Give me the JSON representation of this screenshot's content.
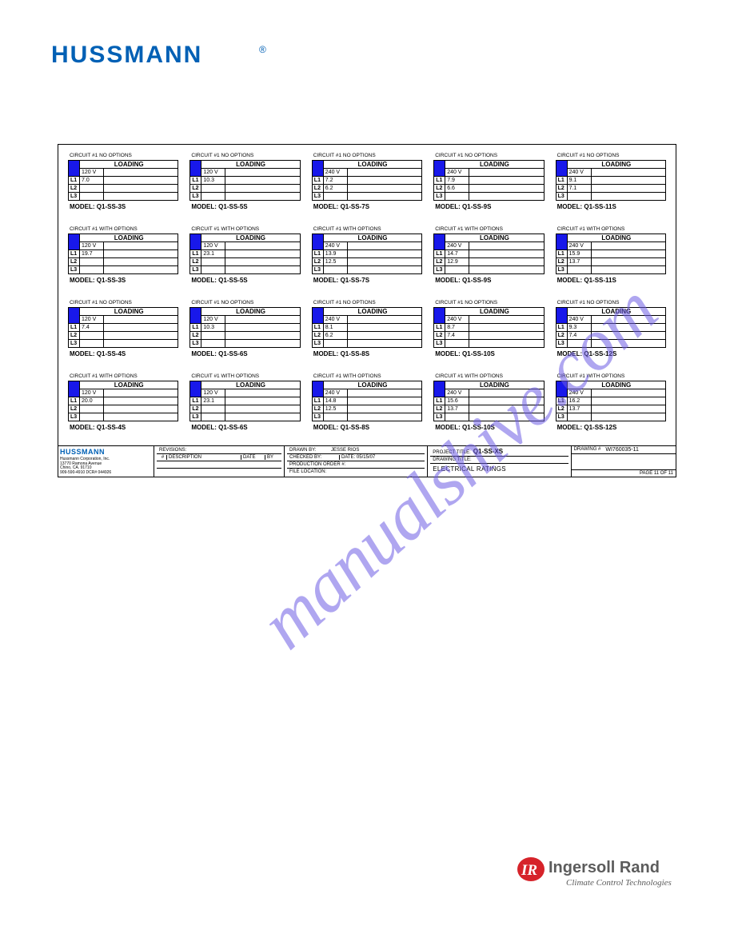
{
  "logo_text": "HUSSMANN",
  "registered": "®",
  "watermark": "manualshive.com",
  "loading_label": "LOADING",
  "L": [
    "L1",
    "L2",
    "L3"
  ],
  "rows": [
    [
      {
        "title": "CIRCUIT #1 NO OPTIONS",
        "volt": "120 V",
        "l1": "7.0",
        "l2": "",
        "model": "MODEL: Q1-SS-3S"
      },
      {
        "title": "CIRCUIT #1 NO OPTIONS",
        "volt": "120 V",
        "l1": "10.3",
        "l2": "",
        "model": "MODEL: Q1-SS-5S"
      },
      {
        "title": "CIRCUIT #1 NO OPTIONS",
        "volt": "240 V",
        "l1": "7.2",
        "l2": "6.2",
        "model": "MODEL: Q1-SS-7S"
      },
      {
        "title": "CIRCUIT #1 NO OPTIONS",
        "volt": "240 V",
        "l1": "7.9",
        "l2": "6.6",
        "model": "MODEL: Q1-SS-9S"
      },
      {
        "title": "CIRCUIT #1 NO OPTIONS",
        "volt": "240 V",
        "l1": "9.1",
        "l2": "7.1",
        "model": "MODEL: Q1-SS-11S"
      }
    ],
    [
      {
        "title": "CIRCUIT #1 WITH OPTIONS",
        "volt": "120 V",
        "l1": "19.7",
        "l2": "",
        "model": "MODEL: Q1-SS-3S"
      },
      {
        "title": "CIRCUIT #1 WITH OPTIONS",
        "volt": "120 V",
        "l1": "23.1",
        "l2": "",
        "model": "MODEL: Q1-SS-5S"
      },
      {
        "title": "CIRCUIT #1 WITH OPTIONS",
        "volt": "240 V",
        "l1": "13.9",
        "l2": "12.5",
        "model": "MODEL: Q1-SS-7S"
      },
      {
        "title": "CIRCUIT #1 WITH OPTIONS",
        "volt": "240 V",
        "l1": "14.7",
        "l2": "12.9",
        "model": "MODEL: Q1-SS-9S"
      },
      {
        "title": "CIRCUIT #1 WITH OPTIONS",
        "volt": "240 V",
        "l1": "15.9",
        "l2": "13.7",
        "model": "MODEL: Q1-SS-11S"
      }
    ],
    [
      {
        "title": "CIRCUIT #1 NO OPTIONS",
        "volt": "120 V",
        "l1": "7.4",
        "l2": "",
        "model": "MODEL: Q1-SS-4S"
      },
      {
        "title": "CIRCUIT #1 NO OPTIONS",
        "volt": "120 V",
        "l1": "10.3",
        "l2": "",
        "model": "MODEL: Q1-SS-6S"
      },
      {
        "title": "CIRCUIT #1 NO OPTIONS",
        "volt": "240 V",
        "l1": "8.1",
        "l2": "6.2",
        "model": "MODEL: Q1-SS-8S"
      },
      {
        "title": "CIRCUIT #1 NO OPTIONS",
        "volt": "240 V",
        "l1": "8.7",
        "l2": "7.4",
        "model": "MODEL: Q1-SS-10S"
      },
      {
        "title": "CIRCUIT #1 NO OPTIONS",
        "volt": "240 V",
        "l1": "9.3",
        "l2": "7.4",
        "model": "MODEL: Q1-SS-12S"
      }
    ],
    [
      {
        "title": "CIRCUIT #1 WITH OPTIONS",
        "volt": "120 V",
        "l1": "20.0",
        "l2": "",
        "model": "MODEL: Q1-SS-4S"
      },
      {
        "title": "CIRCUIT #1 WITH OPTIONS",
        "volt": "120 V",
        "l1": "23.1",
        "l2": "",
        "model": "MODEL: Q1-SS-6S"
      },
      {
        "title": "CIRCUIT #1 WITH OPTIONS",
        "volt": "240 V",
        "l1": "14.8",
        "l2": "12.5",
        "model": "MODEL: Q1-SS-8S"
      },
      {
        "title": "CIRCUIT #1 WITH OPTIONS",
        "volt": "240 V",
        "l1": "15.6",
        "l2": "13.7",
        "model": "MODEL: Q1-SS-10S"
      },
      {
        "title": "CIRCUIT #1 WITH OPTIONS",
        "volt": "240 V",
        "l1": "16.2",
        "l2": "13.7",
        "model": "MODEL: Q1-SS-12S"
      }
    ]
  ],
  "title_block": {
    "addr1": "Hussmann Corporation, Inc.",
    "addr2": "13770 Ramona Avenue",
    "addr3": "Chino, CA. 91710",
    "addr4": "909-590-4910   DCR# 044926",
    "revisions": "REVISIONS:",
    "hash": "#",
    "description": "DESCRIPTION",
    "date": "DATE",
    "by": "BY",
    "drawn_by": "DRAWN BY:",
    "drawn_by_val": "JESSE RIOS",
    "checked_by": "CHECKED BY:",
    "checked_date": "DATE: 05/15/07",
    "prod_order": "PRODUCTION ORDER #:",
    "file_loc": "FILE LOCATION:",
    "project_title_lbl": "PROJECT TITLE:",
    "project_title": "Q1-SS-XS",
    "drawing_title_lbl": "DRAWING TITLE:",
    "drawing_title": "ELECTRICAL RATINGS",
    "drawing_num_lbl": "DRAWING #",
    "drawing_num": "WI760035-11",
    "page": "PAGE 11 OF  11"
  },
  "ir": {
    "brand": "Ingersoll Rand",
    "tagline": "Climate Control Technologies"
  },
  "colors": {
    "logo_blue": "#0060b5",
    "table_blue": "#1818ea",
    "ir_red": "#d6232a",
    "ir_text": "#5c5c5c",
    "watermark": "rgba(109,93,228,0.55)"
  }
}
